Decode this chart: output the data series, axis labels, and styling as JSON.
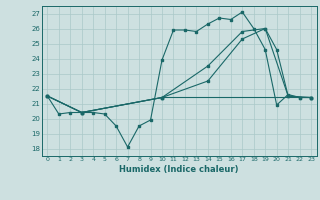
{
  "xlabel": "Humidex (Indice chaleur)",
  "bg_color": "#cde0e0",
  "grid_color": "#aac8c8",
  "line_color": "#1a6868",
  "ylim": [
    17.5,
    27.5
  ],
  "xlim": [
    -0.5,
    23.5
  ],
  "yticks": [
    18,
    19,
    20,
    21,
    22,
    23,
    24,
    25,
    26,
    27
  ],
  "xticks": [
    0,
    1,
    2,
    3,
    4,
    5,
    6,
    7,
    8,
    9,
    10,
    11,
    12,
    13,
    14,
    15,
    16,
    17,
    18,
    19,
    20,
    21,
    22,
    23
  ],
  "lines": [
    {
      "x": [
        0,
        1,
        2,
        3,
        4,
        5,
        6,
        7,
        8,
        9,
        10,
        11,
        12,
        13,
        14,
        15,
        16,
        17,
        18,
        19,
        20,
        21,
        22,
        23
      ],
      "y": [
        21.5,
        20.3,
        20.4,
        20.4,
        20.4,
        20.3,
        19.5,
        18.1,
        19.5,
        19.9,
        23.9,
        25.9,
        25.9,
        25.8,
        26.3,
        26.7,
        26.6,
        27.1,
        26.0,
        24.6,
        20.9,
        21.6,
        21.4,
        21.4
      ]
    },
    {
      "x": [
        0,
        3,
        10,
        14,
        17,
        19,
        20,
        21,
        22,
        23
      ],
      "y": [
        21.5,
        20.4,
        21.4,
        23.5,
        25.8,
        26.0,
        24.6,
        21.5,
        21.4,
        21.4
      ]
    },
    {
      "x": [
        0,
        3,
        10,
        14,
        17,
        19,
        21,
        23
      ],
      "y": [
        21.5,
        20.4,
        21.4,
        22.5,
        25.3,
        26.0,
        21.5,
        21.4
      ]
    },
    {
      "x": [
        0,
        3,
        10,
        23
      ],
      "y": [
        21.5,
        20.4,
        21.4,
        21.4
      ]
    }
  ]
}
